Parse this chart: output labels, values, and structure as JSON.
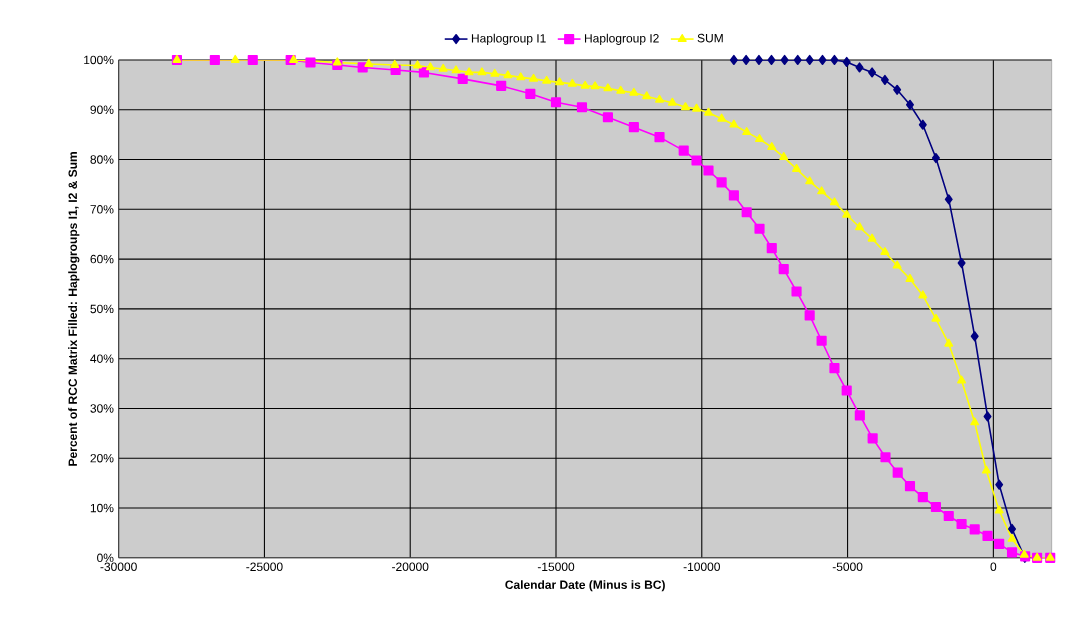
{
  "chart_data": {
    "type": "line",
    "xlabel": "Calendar Date (Minus is BC)",
    "ylabel": "Percent of RCC Matrix Filled: Haplogroups I1, I2 & Sum",
    "xlim": [
      -30000,
      2000
    ],
    "xticks": [
      -30000,
      -25000,
      -20000,
      -15000,
      -10000,
      -5000,
      0
    ],
    "ylim": [
      0,
      100
    ],
    "yticks": [
      {
        "value": 0,
        "label": "0%"
      },
      {
        "value": 10,
        "label": "10%"
      },
      {
        "value": 20,
        "label": "20%"
      },
      {
        "value": 30,
        "label": "30%"
      },
      {
        "value": 40,
        "label": "40%"
      },
      {
        "value": 50,
        "label": "50%"
      },
      {
        "value": 60,
        "label": "60%"
      },
      {
        "value": 70,
        "label": "70%"
      },
      {
        "value": 80,
        "label": "80%"
      },
      {
        "value": 90,
        "label": "90%"
      },
      {
        "value": 100,
        "label": "100%"
      }
    ],
    "grid": true,
    "legend": "top",
    "series": [
      {
        "name": "Haplogroup I1",
        "color": "#000080",
        "marker": "diamond",
        "x": [
          -8900,
          -8480,
          -8040,
          -7610,
          -7160,
          -6710,
          -6300,
          -5860,
          -5450,
          -5030,
          -4590,
          -4160,
          -3720,
          -3300,
          -2860,
          -2420,
          -1970,
          -1530,
          -1090,
          -640,
          -200,
          200,
          640,
          1080
        ],
        "values": [
          100,
          100,
          100,
          100,
          100,
          100,
          100,
          100,
          100,
          99.6,
          98.5,
          97.5,
          96,
          94,
          91,
          87,
          80.3,
          72,
          59.2,
          44.5,
          28.4,
          14.7,
          5.8,
          0
        ]
      },
      {
        "name": "Haplogroup I2",
        "color": "#ff00ff",
        "marker": "square",
        "x": [
          -28000,
          -26700,
          -25400,
          -24100,
          -23420,
          -22500,
          -21630,
          -20500,
          -19530,
          -18200,
          -16880,
          -15880,
          -15000,
          -14110,
          -13220,
          -12330,
          -11450,
          -10620,
          -10180,
          -9770,
          -9320,
          -8900,
          -8460,
          -8020,
          -7600,
          -7190,
          -6750,
          -6300,
          -5890,
          -5450,
          -5030,
          -4580,
          -4140,
          -3700,
          -3280,
          -2860,
          -2420,
          -1970,
          -1530,
          -1090,
          -640,
          -200,
          200,
          640,
          1090,
          1500,
          1950
        ],
        "values": [
          100,
          100,
          100,
          100,
          99.5,
          99,
          98.5,
          98,
          97.5,
          96.2,
          94.8,
          93.2,
          91.5,
          90.5,
          88.5,
          86.5,
          84.5,
          81.8,
          79.8,
          77.8,
          75.4,
          72.8,
          69.4,
          66.1,
          62.2,
          58,
          53.5,
          48.7,
          43.6,
          38.1,
          33.6,
          28.6,
          24,
          20.2,
          17.1,
          14.4,
          12.2,
          10.2,
          8.4,
          6.8,
          5.7,
          4.4,
          2.8,
          1.1,
          0.3,
          0,
          0
        ]
      },
      {
        "name": "SUM",
        "color": "#ffff00",
        "marker": "triangle",
        "x": [
          -28000,
          -26000,
          -24000,
          -22500,
          -21420,
          -20530,
          -19750,
          -19310,
          -18870,
          -18430,
          -17980,
          -17540,
          -17100,
          -16650,
          -16210,
          -15770,
          -15320,
          -14880,
          -14440,
          -14000,
          -13660,
          -13220,
          -12780,
          -12330,
          -11890,
          -11450,
          -11010,
          -10560,
          -10180,
          -9770,
          -9320,
          -8900,
          -8460,
          -8020,
          -7600,
          -7190,
          -6750,
          -6300,
          -5890,
          -5450,
          -5030,
          -4590,
          -4160,
          -3720,
          -3300,
          -2860,
          -2420,
          -1970,
          -1530,
          -1090,
          -640,
          -240,
          200,
          640,
          1060,
          1500,
          1950
        ],
        "values": [
          100,
          100,
          100,
          99.5,
          99.2,
          99,
          98.9,
          98.5,
          98.2,
          97.9,
          97.5,
          97.5,
          97.2,
          96.9,
          96.5,
          96.2,
          95.8,
          95.5,
          95.2,
          94.8,
          94.7,
          94.3,
          93.8,
          93.4,
          92.7,
          92,
          91.4,
          90.5,
          90.2,
          89.4,
          88.2,
          87,
          85.5,
          84.1,
          82.5,
          80.5,
          78.1,
          75.6,
          73.6,
          71.4,
          68.9,
          66.4,
          64.1,
          61.4,
          58.7,
          56,
          52.7,
          48,
          43,
          35.6,
          27.2,
          17.5,
          9.5,
          3.8,
          0.6,
          0,
          0
        ]
      }
    ]
  }
}
